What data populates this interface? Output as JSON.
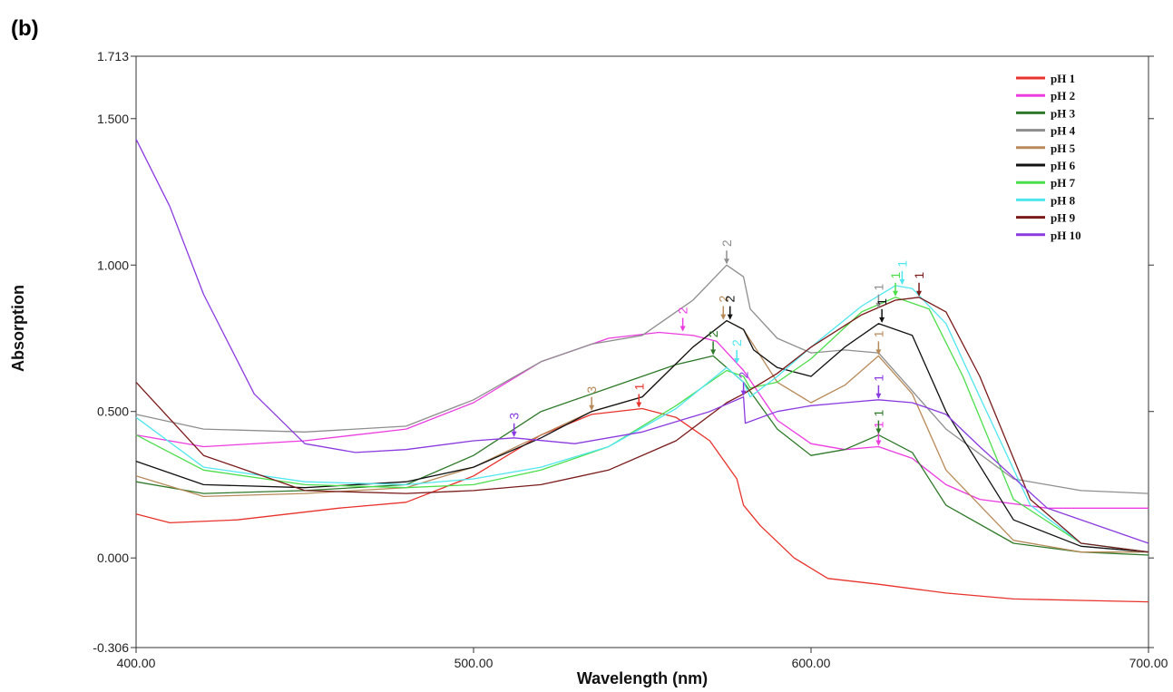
{
  "panel_label": "(b)",
  "colors": {
    "pH 1": "#e8322b",
    "pH 2": "#ec3be0",
    "pH 3": "#2f7a2a",
    "pH 4": "#8e8e8e",
    "pH 5": "#b88a5a",
    "pH 6": "#111111",
    "pH 7": "#4cde4a",
    "pH 8": "#4fe6ee",
    "pH 9": "#7a1a1a",
    "pH 10": "#8a3be0"
  },
  "chart_data": {
    "type": "line",
    "xlabel": "Wavelength (nm)",
    "ylabel": "Absorption",
    "xlim": [
      400,
      700
    ],
    "ylim": [
      -0.306,
      1.713
    ],
    "x_ticks": [
      "400.00",
      "500.00",
      "600.00",
      "700.00"
    ],
    "y_ticks": [
      "1.713",
      "1.500",
      "1.000",
      "0.500",
      "0.000",
      "-0.306"
    ],
    "grid": false,
    "legend_position": "top-right",
    "series": [
      {
        "name": "pH 1",
        "x": [
          400,
          410,
          430,
          460,
          480,
          500,
          520,
          535,
          550,
          560,
          570,
          578,
          580,
          585,
          595,
          605,
          620,
          640,
          660,
          680,
          700
        ],
        "y": [
          0.15,
          0.12,
          0.13,
          0.17,
          0.19,
          0.28,
          0.42,
          0.49,
          0.51,
          0.48,
          0.4,
          0.27,
          0.18,
          0.11,
          0.0,
          -0.07,
          -0.09,
          -0.12,
          -0.14,
          -0.145,
          -0.15
        ]
      },
      {
        "name": "pH 2",
        "x": [
          400,
          420,
          450,
          480,
          500,
          520,
          540,
          555,
          565,
          572,
          580,
          590,
          600,
          610,
          620,
          630,
          640,
          650,
          670,
          700
        ],
        "y": [
          0.42,
          0.38,
          0.4,
          0.44,
          0.53,
          0.67,
          0.75,
          0.77,
          0.76,
          0.74,
          0.64,
          0.47,
          0.39,
          0.37,
          0.38,
          0.34,
          0.25,
          0.2,
          0.17,
          0.17
        ]
      },
      {
        "name": "pH 3",
        "x": [
          400,
          420,
          450,
          480,
          500,
          520,
          540,
          560,
          571,
          580,
          590,
          600,
          610,
          620,
          630,
          640,
          660,
          680,
          700
        ],
        "y": [
          0.26,
          0.22,
          0.23,
          0.25,
          0.35,
          0.5,
          0.58,
          0.66,
          0.69,
          0.6,
          0.44,
          0.35,
          0.37,
          0.42,
          0.36,
          0.18,
          0.05,
          0.02,
          0.01
        ]
      },
      {
        "name": "pH 4",
        "x": [
          400,
          420,
          450,
          480,
          500,
          520,
          535,
          550,
          565,
          575,
          580,
          582,
          590,
          600,
          610,
          620,
          640,
          660,
          680,
          700
        ],
        "y": [
          0.49,
          0.44,
          0.43,
          0.45,
          0.54,
          0.67,
          0.73,
          0.76,
          0.88,
          1.0,
          0.96,
          0.85,
          0.75,
          0.7,
          0.71,
          0.7,
          0.44,
          0.27,
          0.23,
          0.22
        ]
      },
      {
        "name": "pH 5",
        "x": [
          400,
          420,
          450,
          480,
          500,
          520,
          535,
          550,
          565,
          575,
          580,
          590,
          600,
          610,
          620,
          630,
          640,
          660,
          680,
          700
        ],
        "y": [
          0.28,
          0.21,
          0.22,
          0.24,
          0.31,
          0.42,
          0.5,
          0.55,
          0.72,
          0.81,
          0.78,
          0.6,
          0.53,
          0.59,
          0.69,
          0.56,
          0.3,
          0.06,
          0.02,
          0.02
        ]
      },
      {
        "name": "pH 6",
        "x": [
          400,
          420,
          450,
          480,
          500,
          520,
          535,
          550,
          565,
          575,
          580,
          583,
          590,
          600,
          610,
          620,
          630,
          640,
          660,
          680,
          700
        ],
        "y": [
          0.33,
          0.25,
          0.24,
          0.26,
          0.31,
          0.41,
          0.5,
          0.55,
          0.72,
          0.81,
          0.78,
          0.71,
          0.65,
          0.62,
          0.72,
          0.8,
          0.76,
          0.5,
          0.13,
          0.04,
          0.02
        ]
      },
      {
        "name": "pH 7",
        "x": [
          400,
          420,
          450,
          480,
          500,
          520,
          540,
          560,
          575,
          580,
          582,
          590,
          600,
          615,
          625,
          635,
          645,
          660,
          680,
          700
        ],
        "y": [
          0.42,
          0.3,
          0.25,
          0.24,
          0.25,
          0.3,
          0.38,
          0.52,
          0.64,
          0.62,
          0.58,
          0.6,
          0.68,
          0.84,
          0.89,
          0.85,
          0.62,
          0.2,
          0.05,
          0.02
        ]
      },
      {
        "name": "pH 8",
        "x": [
          400,
          420,
          450,
          480,
          500,
          520,
          540,
          560,
          575,
          580,
          582,
          590,
          600,
          615,
          625,
          630,
          640,
          650,
          665,
          680,
          700
        ],
        "y": [
          0.48,
          0.31,
          0.26,
          0.25,
          0.27,
          0.31,
          0.38,
          0.51,
          0.65,
          0.6,
          0.55,
          0.62,
          0.72,
          0.86,
          0.93,
          0.92,
          0.8,
          0.55,
          0.18,
          0.05,
          0.02
        ]
      },
      {
        "name": "pH 9",
        "x": [
          400,
          420,
          450,
          480,
          500,
          520,
          540,
          560,
          575,
          580,
          590,
          600,
          615,
          625,
          632,
          640,
          650,
          665,
          680,
          700
        ],
        "y": [
          0.6,
          0.35,
          0.23,
          0.22,
          0.23,
          0.25,
          0.3,
          0.4,
          0.53,
          0.56,
          0.63,
          0.72,
          0.83,
          0.88,
          0.89,
          0.84,
          0.62,
          0.2,
          0.05,
          0.02
        ]
      },
      {
        "name": "pH 10",
        "x": [
          400,
          410,
          420,
          435,
          450,
          465,
          480,
          500,
          512,
          530,
          550,
          570,
          580,
          580.5,
          590,
          600,
          610,
          620,
          630,
          640,
          650,
          670,
          700
        ],
        "y": [
          1.43,
          1.2,
          0.9,
          0.56,
          0.39,
          0.36,
          0.37,
          0.4,
          0.41,
          0.39,
          0.43,
          0.5,
          0.55,
          0.46,
          0.5,
          0.52,
          0.53,
          0.54,
          0.53,
          0.49,
          0.38,
          0.17,
          0.05
        ]
      }
    ],
    "annotations": [
      {
        "series": "pH 1",
        "x": 549,
        "y": 0.51,
        "text": "1"
      },
      {
        "series": "pH 2",
        "x": 562,
        "y": 0.77,
        "text": "2"
      },
      {
        "series": "pH 2",
        "x": 620,
        "y": 0.38,
        "text": "1"
      },
      {
        "series": "pH 3",
        "x": 571,
        "y": 0.69,
        "text": "2"
      },
      {
        "series": "pH 3",
        "x": 620,
        "y": 0.42,
        "text": "1"
      },
      {
        "series": "pH 4",
        "x": 575,
        "y": 1.0,
        "text": "2"
      },
      {
        "series": "pH 4",
        "x": 620,
        "y": 0.85,
        "text": "1"
      },
      {
        "series": "pH 5",
        "x": 535,
        "y": 0.5,
        "text": "3"
      },
      {
        "series": "pH 5",
        "x": 574,
        "y": 0.81,
        "text": "2"
      },
      {
        "series": "pH 5",
        "x": 620,
        "y": 0.69,
        "text": "1"
      },
      {
        "series": "pH 6",
        "x": 576,
        "y": 0.81,
        "text": "2"
      },
      {
        "series": "pH 6",
        "x": 621,
        "y": 0.8,
        "text": "1"
      },
      {
        "series": "pH 7",
        "x": 625,
        "y": 0.89,
        "text": "1"
      },
      {
        "series": "pH 8",
        "x": 578,
        "y": 0.66,
        "text": "2"
      },
      {
        "series": "pH 8",
        "x": 627,
        "y": 0.93,
        "text": "1"
      },
      {
        "series": "pH 9",
        "x": 632,
        "y": 0.89,
        "text": "1"
      },
      {
        "series": "pH 10",
        "x": 512,
        "y": 0.41,
        "text": "3"
      },
      {
        "series": "pH 10",
        "x": 580,
        "y": 0.55,
        "text": "2"
      },
      {
        "series": "pH 10",
        "x": 620,
        "y": 0.54,
        "text": "1"
      }
    ]
  }
}
